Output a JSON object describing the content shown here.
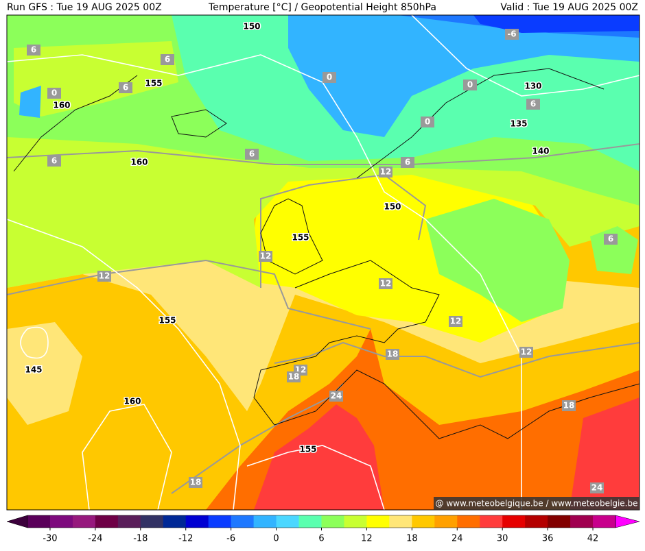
{
  "header": {
    "left": "Run GFS : Tue 19 AUG 2025 00Z",
    "center": "Temperature [°C] / Geopotential Height 850hPa",
    "right": "Valid : Tue 19 AUG 2025 00Z"
  },
  "height_labels": [
    150,
    155,
    130,
    160,
    135,
    140,
    160,
    150,
    155,
    155,
    145,
    160,
    155
  ],
  "isotherm_labels": [
    -6,
    6,
    6,
    0,
    6,
    0,
    0,
    6,
    0,
    6,
    6,
    6,
    12,
    6,
    12,
    12,
    12,
    12,
    12,
    18,
    12,
    18,
    24,
    18,
    18,
    24
  ],
  "watermark": "@ www.meteobelgique.be / www.meteobelgie.be",
  "colorbar": {
    "lim": [
      -33,
      45
    ],
    "ticks": [
      -30,
      -24,
      -18,
      -12,
      -6,
      0,
      6,
      12,
      18,
      24,
      30,
      36,
      42
    ],
    "colors": [
      "#3c003c",
      "#5a005a",
      "#7d0a7d",
      "#96197d",
      "#6e0046",
      "#5a1e5a",
      "#323264",
      "#002896",
      "#0000d2",
      "#0a3cff",
      "#1e78ff",
      "#32b4ff",
      "#4bd7ff",
      "#5affaf",
      "#8cff5a",
      "#c8ff32",
      "#ffff00",
      "#ffe678",
      "#ffc800",
      "#ffa000",
      "#ff6e00",
      "#ff3c3c",
      "#e60000",
      "#b40000",
      "#820000",
      "#a00050",
      "#c8008c",
      "#ff00ff"
    ]
  }
}
